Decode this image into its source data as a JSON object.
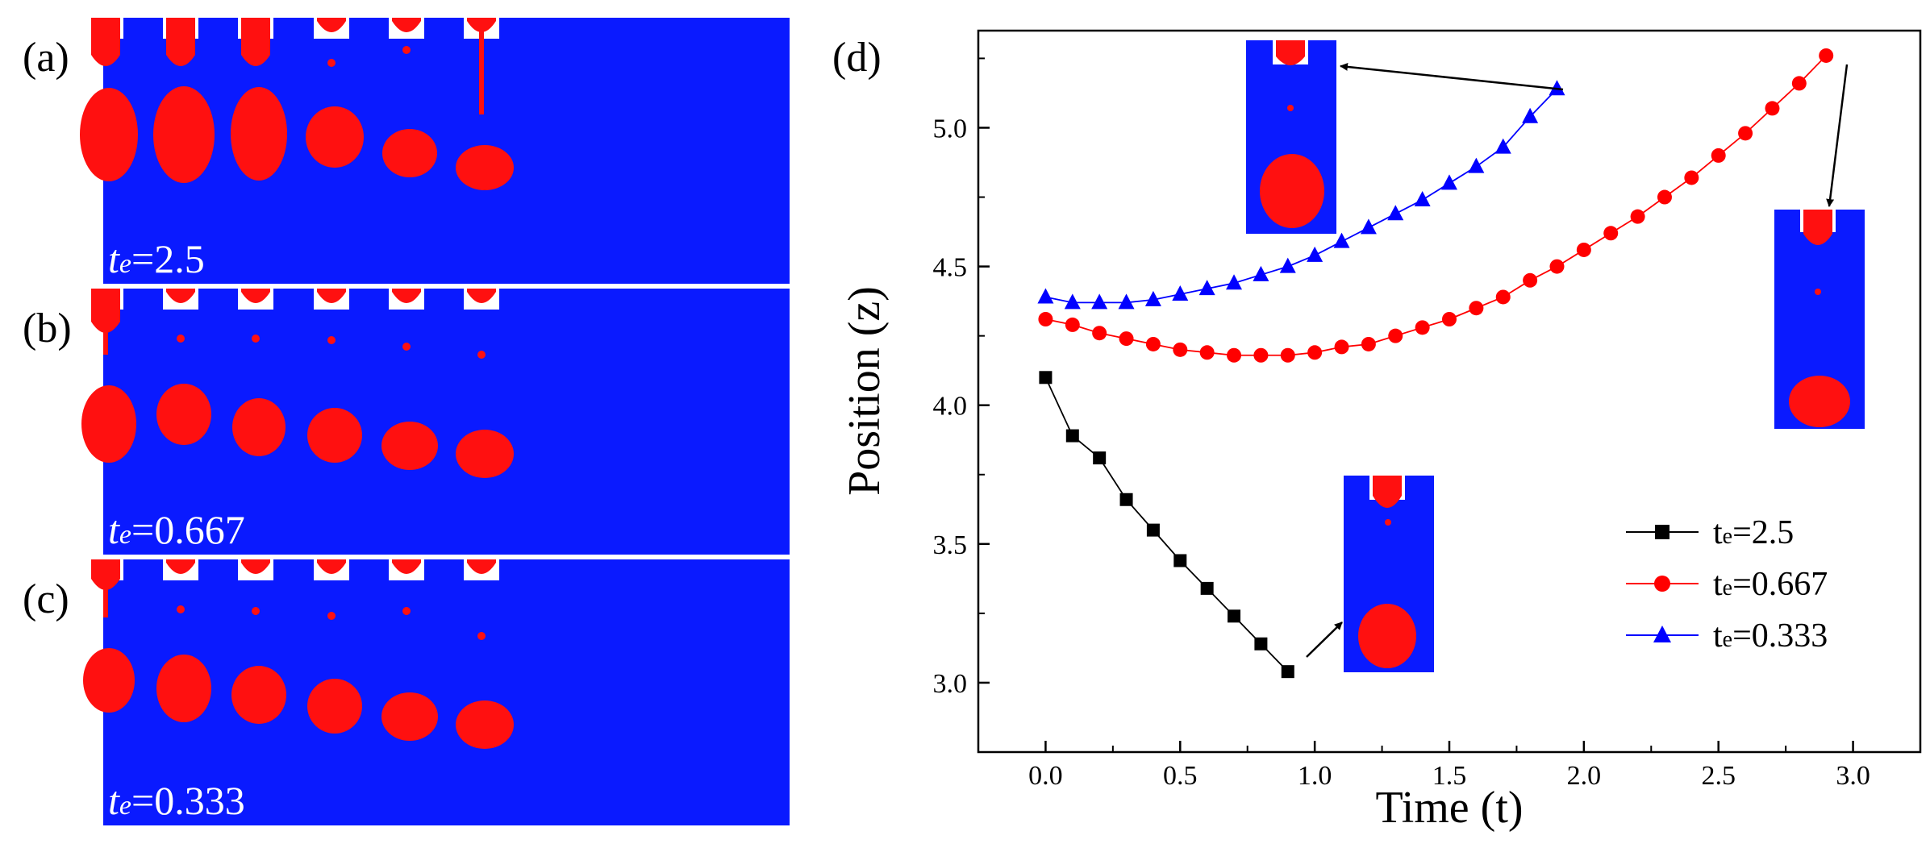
{
  "colors": {
    "background_fluid": "#0a1aff",
    "droplet": "#ff1010",
    "series_1": "#000000",
    "series_2": "#ff0000",
    "series_3": "#0000ff"
  },
  "panels": {
    "a": {
      "label": "(a)",
      "te_symbol": "t",
      "te_sub": "e",
      "te_value": "=2.5"
    },
    "b": {
      "label": "(b)",
      "te_symbol": "t",
      "te_sub": "e",
      "te_value": "=0.667"
    },
    "c": {
      "label": "(c)",
      "te_symbol": "t",
      "te_sub": "e",
      "te_value": "=0.333"
    },
    "d": {
      "label": "(d)"
    }
  },
  "chart_data": {
    "type": "line",
    "title": "",
    "xlabel": "Time (t)",
    "ylabel": "Position (z)",
    "xlim": [
      -0.25,
      3.25
    ],
    "ylim": [
      2.75,
      5.35
    ],
    "xticks": [
      0.0,
      0.5,
      1.0,
      1.5,
      2.0,
      2.5,
      3.0
    ],
    "xtick_labels": [
      "0.0",
      "0.5",
      "1.0",
      "1.5",
      "2.0",
      "2.5",
      "3.0"
    ],
    "yticks": [
      3.0,
      3.5,
      4.0,
      4.5,
      5.0
    ],
    "ytick_labels": [
      "3.0",
      "3.5",
      "4.0",
      "4.5",
      "5.0"
    ],
    "legend_position": "bottom-right",
    "series": [
      {
        "name": "te=2.5",
        "legend_main": "t",
        "legend_sub": "e",
        "legend_rest": "=2.5",
        "marker": "square",
        "color": "#000000",
        "x": [
          0.0,
          0.1,
          0.2,
          0.3,
          0.4,
          0.5,
          0.6,
          0.7,
          0.8,
          0.9
        ],
        "y": [
          4.1,
          3.89,
          3.81,
          3.66,
          3.55,
          3.44,
          3.34,
          3.24,
          3.14,
          3.04
        ]
      },
      {
        "name": "te=0.667",
        "legend_main": "t",
        "legend_sub": "e",
        "legend_rest": "=0.667",
        "marker": "circle",
        "color": "#ff0000",
        "x": [
          0.0,
          0.1,
          0.2,
          0.3,
          0.4,
          0.5,
          0.6,
          0.7,
          0.8,
          0.9,
          1.0,
          1.1,
          1.2,
          1.3,
          1.4,
          1.5,
          1.6,
          1.7,
          1.8,
          1.9,
          2.0,
          2.1,
          2.2,
          2.3,
          2.4,
          2.5,
          2.6,
          2.7,
          2.8,
          2.9
        ],
        "y": [
          4.31,
          4.29,
          4.26,
          4.24,
          4.22,
          4.2,
          4.19,
          4.18,
          4.18,
          4.18,
          4.19,
          4.21,
          4.22,
          4.25,
          4.28,
          4.31,
          4.35,
          4.39,
          4.45,
          4.5,
          4.56,
          4.62,
          4.68,
          4.75,
          4.82,
          4.9,
          4.98,
          5.07,
          5.16,
          5.26
        ]
      },
      {
        "name": "te=0.333",
        "legend_main": "t",
        "legend_sub": "e",
        "legend_rest": "=0.333",
        "marker": "triangle",
        "color": "#0000ff",
        "x": [
          0.0,
          0.1,
          0.2,
          0.3,
          0.4,
          0.5,
          0.6,
          0.7,
          0.8,
          0.9,
          1.0,
          1.1,
          1.2,
          1.3,
          1.4,
          1.5,
          1.6,
          1.7,
          1.8,
          1.9
        ],
        "y": [
          4.39,
          4.37,
          4.37,
          4.37,
          4.38,
          4.4,
          4.42,
          4.44,
          4.47,
          4.5,
          4.54,
          4.59,
          4.64,
          4.69,
          4.74,
          4.8,
          4.86,
          4.93,
          5.04,
          5.14
        ]
      }
    ]
  }
}
